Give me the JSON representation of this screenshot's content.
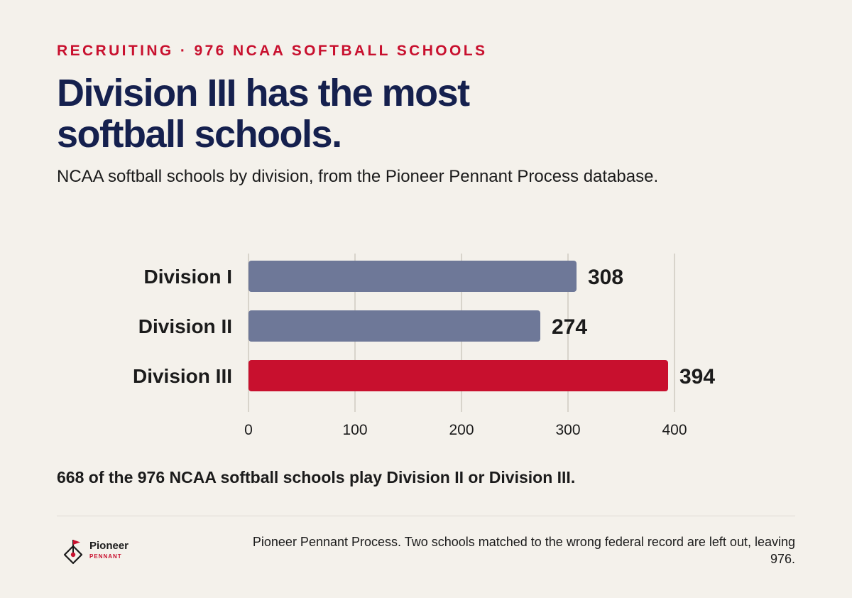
{
  "header": {
    "eyebrow": "RECRUITING · 976 NCAA SOFTBALL SCHOOLS",
    "title": "Division III has the most softball schools.",
    "subtitle": "NCAA softball schools by division, from the Pioneer Pennant Process database."
  },
  "chart_data": {
    "type": "bar",
    "orientation": "horizontal",
    "categories": [
      "Division I",
      "Division II",
      "Division III"
    ],
    "values": [
      308,
      274,
      394
    ],
    "xlim": [
      0,
      400
    ],
    "xticks": [
      0,
      100,
      200,
      300,
      400
    ],
    "grid": "vertical",
    "bar_colors": [
      "#6e7898",
      "#6e7898",
      "#c8102e"
    ],
    "highlight": "Division III"
  },
  "takeaway": "668 of the 976 NCAA softball schools play Division II or Division III.",
  "footer": {
    "logo_name": "Pioneer",
    "logo_sub": "PENNANT",
    "source": "Pioneer Pennant Process. Two schools matched to the wrong federal record are left out, leaving 976."
  },
  "colors": {
    "accent": "#c8102e",
    "title": "#15204e",
    "bar_default": "#6e7898",
    "background": "#f4f1eb"
  }
}
